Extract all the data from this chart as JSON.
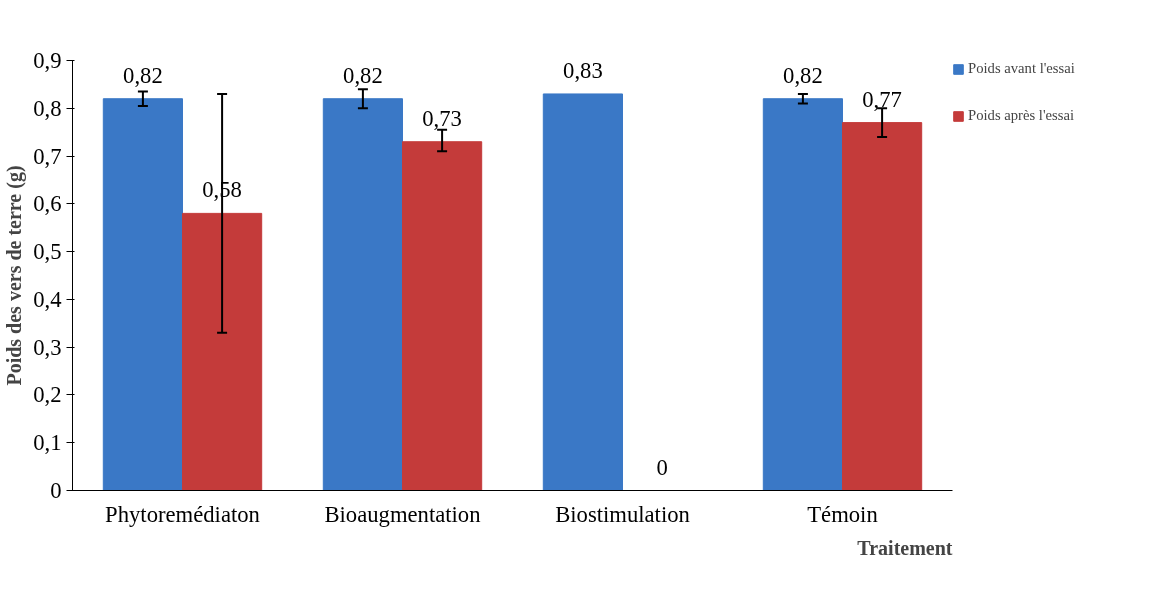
{
  "chart_data": {
    "type": "bar",
    "ylabel": "Poids des vers de terre (g)",
    "xlabel": "Traitement",
    "categories": [
      "Phytoremédiaton",
      "Bioaugmentation",
      "Biostimulation",
      "Témoin"
    ],
    "series": [
      {
        "name": "Poids avant l'essai",
        "color": "#3a78c6",
        "values": [
          0.82,
          0.82,
          0.83,
          0.82
        ],
        "errors": [
          0.015,
          0.02,
          null,
          0.01
        ],
        "value_labels": [
          "0,82",
          "0,82",
          "0,83",
          "0,82"
        ]
      },
      {
        "name": "Poids après l'essai",
        "color": "#c43b3a",
        "values": [
          0.58,
          0.73,
          0,
          0.77
        ],
        "errors": [
          [
            0.33,
            0.83
          ],
          [
            0.71,
            0.755
          ],
          null,
          [
            0.74,
            0.8
          ]
        ],
        "value_labels": [
          "0,58",
          "0,73",
          "0",
          "0,77"
        ]
      }
    ],
    "ylim": [
      0,
      0.9
    ],
    "yticks": [
      {
        "value": 0,
        "label": "0"
      },
      {
        "value": 0.1,
        "label": "0,1"
      },
      {
        "value": 0.2,
        "label": "0,2"
      },
      {
        "value": 0.3,
        "label": "0,3"
      },
      {
        "value": 0.4,
        "label": "0,4"
      },
      {
        "value": 0.5,
        "label": "0,5"
      },
      {
        "value": 0.6,
        "label": "0,6"
      },
      {
        "value": 0.7,
        "label": "0,7"
      },
      {
        "value": 0.8,
        "label": "0,8"
      },
      {
        "value": 0.9,
        "label": "0,9"
      }
    ],
    "grid": false,
    "legend": "top right"
  }
}
